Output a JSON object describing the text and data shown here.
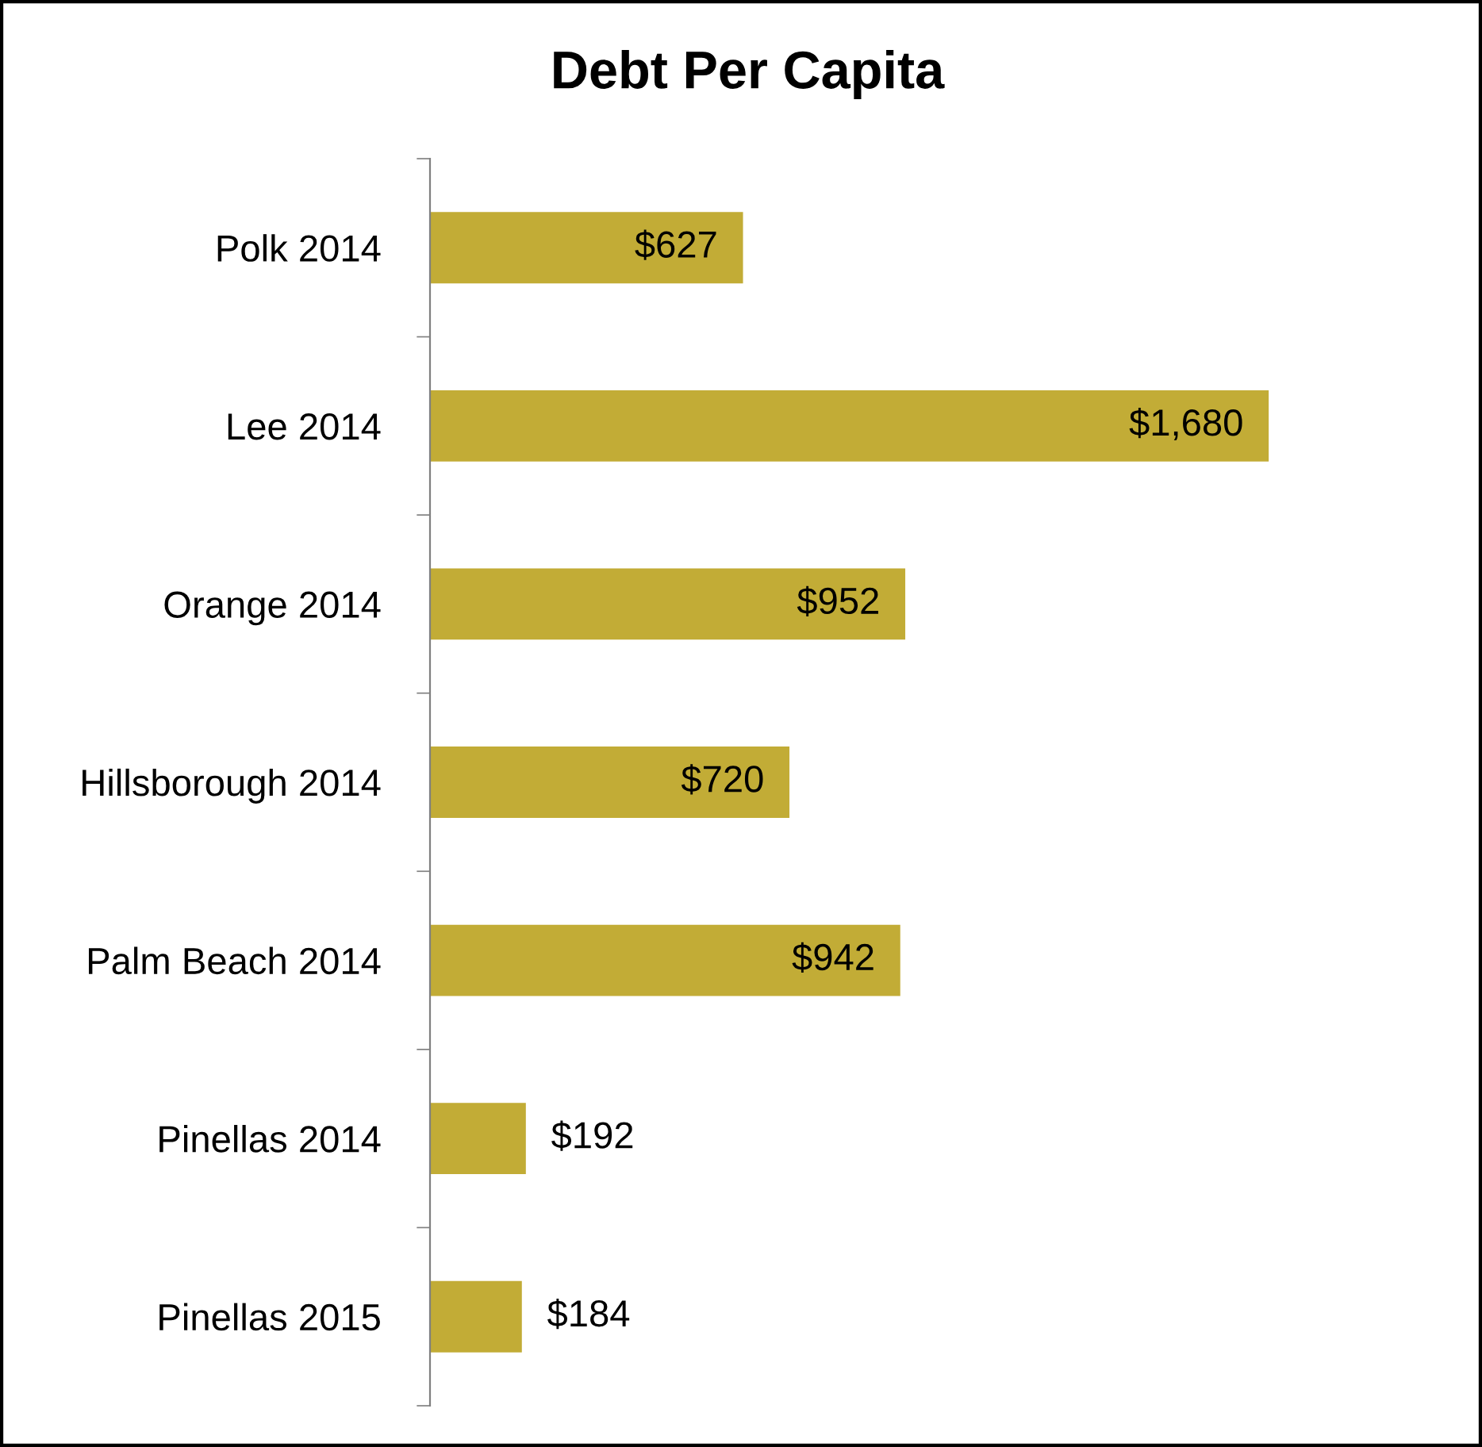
{
  "chart_data": {
    "type": "bar",
    "orientation": "horizontal",
    "title": "Debt Per Capita",
    "categories": [
      "Polk 2014",
      "Lee 2014",
      "Orange 2014",
      "Hillsborough 2014",
      "Palm Beach 2014",
      "Pinellas 2014",
      "Pinellas 2015"
    ],
    "values": [
      627,
      1680,
      952,
      720,
      942,
      192,
      184
    ],
    "value_labels": [
      "$627",
      "$1,680",
      "$952",
      "$720",
      "$942",
      "$192",
      "$184"
    ],
    "color": "#c2ac36",
    "grid": false,
    "legend": false
  }
}
